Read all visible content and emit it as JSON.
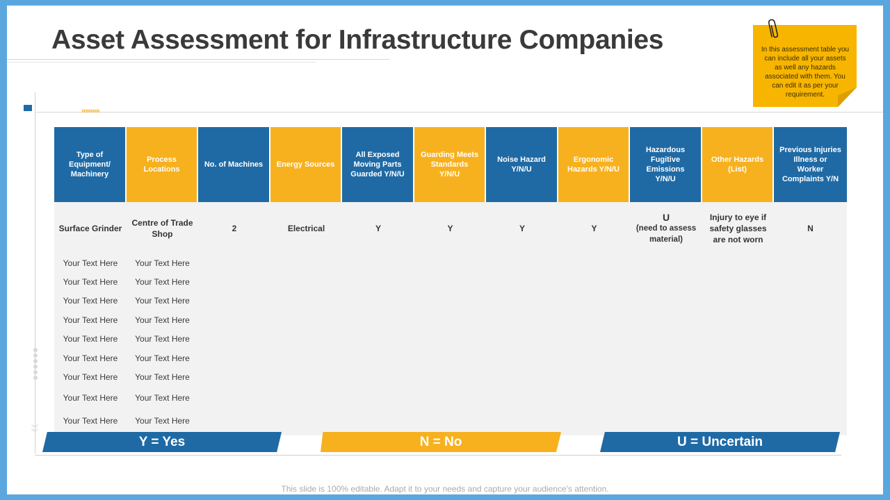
{
  "title": "Asset Assessment for Infrastructure Companies",
  "note": "In this assessment table you can include all your assets as well any hazards associated with them. You can edit it as per your requirement.",
  "decor": {
    "chevrons": "»»»»»"
  },
  "table": {
    "headers": [
      "Type of Equipment/ Machinery",
      "Process Locations",
      "No. of Machines",
      "Energy Sources",
      "All Exposed Moving Parts Guarded Y/N/U",
      "Guarding Meets Standards Y/N/U",
      "Noise Hazard Y/N/U",
      "Ergonomic Hazards Y/N/U",
      "Hazardous Fugitive Emissions Y/N/U",
      "Other Hazards (List)",
      "Previous Injuries Illness or Worker Complaints Y/N"
    ],
    "first_row": {
      "equipment": "Surface Grinder",
      "location": "Centre of Trade Shop",
      "machines": "2",
      "energy": "Electrical",
      "guarded": "Y",
      "standards": "Y",
      "noise": "Y",
      "ergonomic": "Y",
      "emissions_main": "U",
      "emissions_sub": "(need to assess material)",
      "other": "Injury to eye if safety glasses are not worn",
      "injuries": "N"
    },
    "placeholder_rows": [
      [
        "Your Text Here",
        "Your Text Here"
      ],
      [
        "Your Text Here",
        "Your Text Here"
      ],
      [
        "Your Text Here",
        "Your Text Here"
      ],
      [
        "Your Text Here",
        "Your Text Here"
      ],
      [
        "Your Text Here",
        "Your Text Here"
      ],
      [
        "Your Text Here",
        "Your Text Here"
      ],
      [
        "Your Text Here",
        "Your Text Here"
      ],
      [
        "Your Text Here",
        "Your Text Here"
      ],
      [
        "Your Text Here",
        "Your Text Here"
      ]
    ]
  },
  "legend": {
    "yes": "Y = Yes",
    "no": "N = No",
    "uncertain": "U = Uncertain"
  },
  "footer": "This slide is 100% editable. Adapt it to your needs and capture your audience's attention.",
  "colors": {
    "blue": "#1f6aa5",
    "orange": "#f7b11e",
    "frame": "#5aa7e0"
  }
}
